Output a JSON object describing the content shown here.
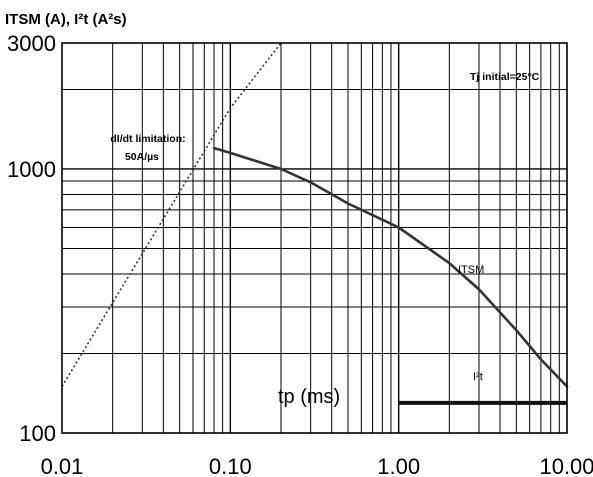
{
  "chart_data": {
    "type": "line",
    "title": "ITSM (A), I²t (A²s)",
    "xlabel": "tp (ms)",
    "x_scale": "log",
    "y_scale": "log",
    "xlim": [
      0.01,
      10
    ],
    "ylim": [
      100,
      3000
    ],
    "x_ticks": [
      "0.01",
      "0.10",
      "1.00",
      "10.00"
    ],
    "y_ticks": [
      "100",
      "1000",
      "3000"
    ],
    "grid": true,
    "annotations": {
      "condition": "Tj initial=25°C",
      "limit_line1": "dI/dt limitation:",
      "limit_line2": "50A/µs"
    },
    "series": [
      {
        "name": "ITSM",
        "style": "solid",
        "color": "#333333",
        "points": [
          [
            0.08,
            1200
          ],
          [
            0.1,
            1150
          ],
          [
            0.2,
            1000
          ],
          [
            0.3,
            890
          ],
          [
            0.5,
            740
          ],
          [
            1.0,
            600
          ],
          [
            2.0,
            440
          ],
          [
            3.0,
            350
          ],
          [
            5.0,
            245
          ],
          [
            7.0,
            190
          ],
          [
            10.0,
            150
          ]
        ]
      },
      {
        "name": "I²t",
        "style": "solid-thick",
        "color": "#111111",
        "points": [
          [
            1.0,
            130
          ],
          [
            10.0,
            130
          ]
        ]
      },
      {
        "name": "dI/dt limitation",
        "style": "dotted",
        "color": "#333333",
        "points": [
          [
            0.01,
            150
          ],
          [
            0.1,
            1700
          ],
          [
            0.2,
            3000
          ]
        ]
      }
    ]
  }
}
